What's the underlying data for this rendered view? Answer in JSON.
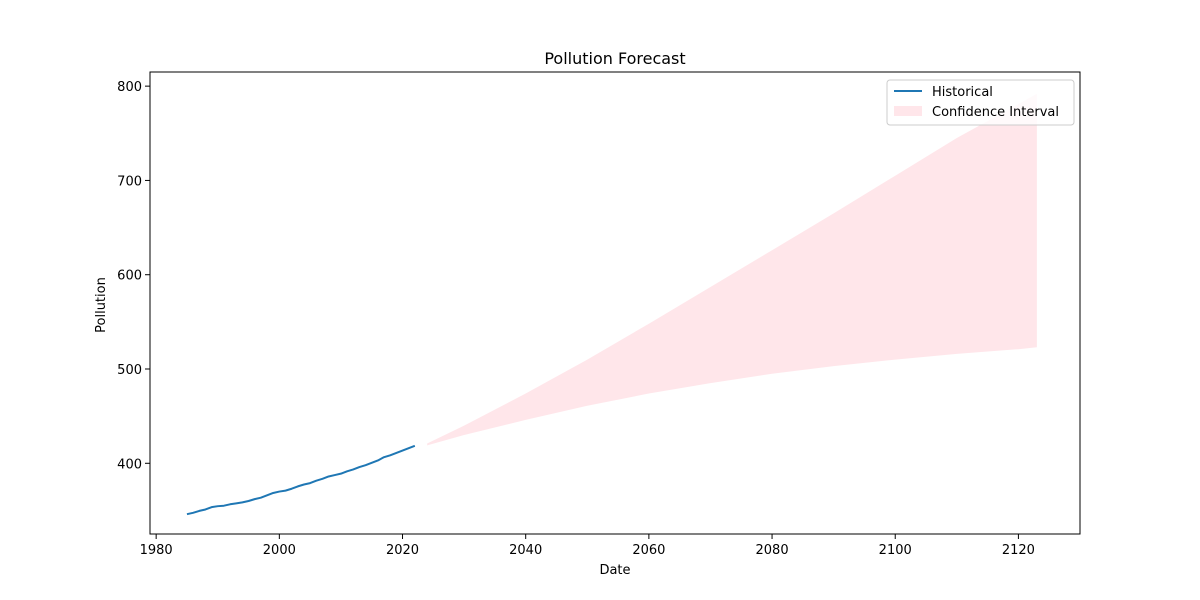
{
  "chart_data": {
    "type": "line",
    "title": "Pollution Forecast",
    "xlabel": "Date",
    "ylabel": "Pollution",
    "xlim": [
      1979,
      2130
    ],
    "ylim": [
      325,
      815
    ],
    "x_ticks": [
      1980,
      2000,
      2020,
      2040,
      2060,
      2080,
      2100,
      2120
    ],
    "y_ticks": [
      400,
      500,
      600,
      700,
      800
    ],
    "grid": false,
    "legend_position": "top-right",
    "series": [
      {
        "name": "Historical",
        "type": "line",
        "color": "#1f77b4",
        "x": [
          1985,
          1986,
          1987,
          1988,
          1989,
          1990,
          1991,
          1992,
          1993,
          1994,
          1995,
          1996,
          1997,
          1998,
          1999,
          2000,
          2001,
          2002,
          2003,
          2004,
          2005,
          2006,
          2007,
          2008,
          2009,
          2010,
          2011,
          2012,
          2013,
          2014,
          2015,
          2016,
          2017,
          2018,
          2019,
          2020,
          2021,
          2022
        ],
        "y": [
          346,
          347.5,
          349.5,
          351,
          353.5,
          354.5,
          355,
          356.5,
          357.5,
          358.5,
          360,
          362,
          363.5,
          366,
          368.5,
          370,
          371,
          373,
          375.5,
          377.5,
          379,
          381.5,
          383.5,
          386,
          387.5,
          389,
          391.5,
          393.5,
          396,
          398,
          400.5,
          403,
          406.5,
          408.5,
          411,
          413.5,
          416,
          418.5
        ]
      },
      {
        "name": "Confidence Interval",
        "type": "area",
        "color": "#ffc0cb",
        "opacity": 0.4,
        "x": [
          2024,
          2030,
          2040,
          2050,
          2060,
          2070,
          2080,
          2090,
          2100,
          2110,
          2120,
          2123
        ],
        "lower": [
          419,
          430,
          446,
          461,
          474,
          485,
          495,
          503,
          510,
          516,
          521,
          523
        ],
        "upper": [
          421,
          440,
          474,
          510,
          548,
          587,
          626,
          665,
          705,
          745,
          781,
          792
        ]
      }
    ]
  }
}
